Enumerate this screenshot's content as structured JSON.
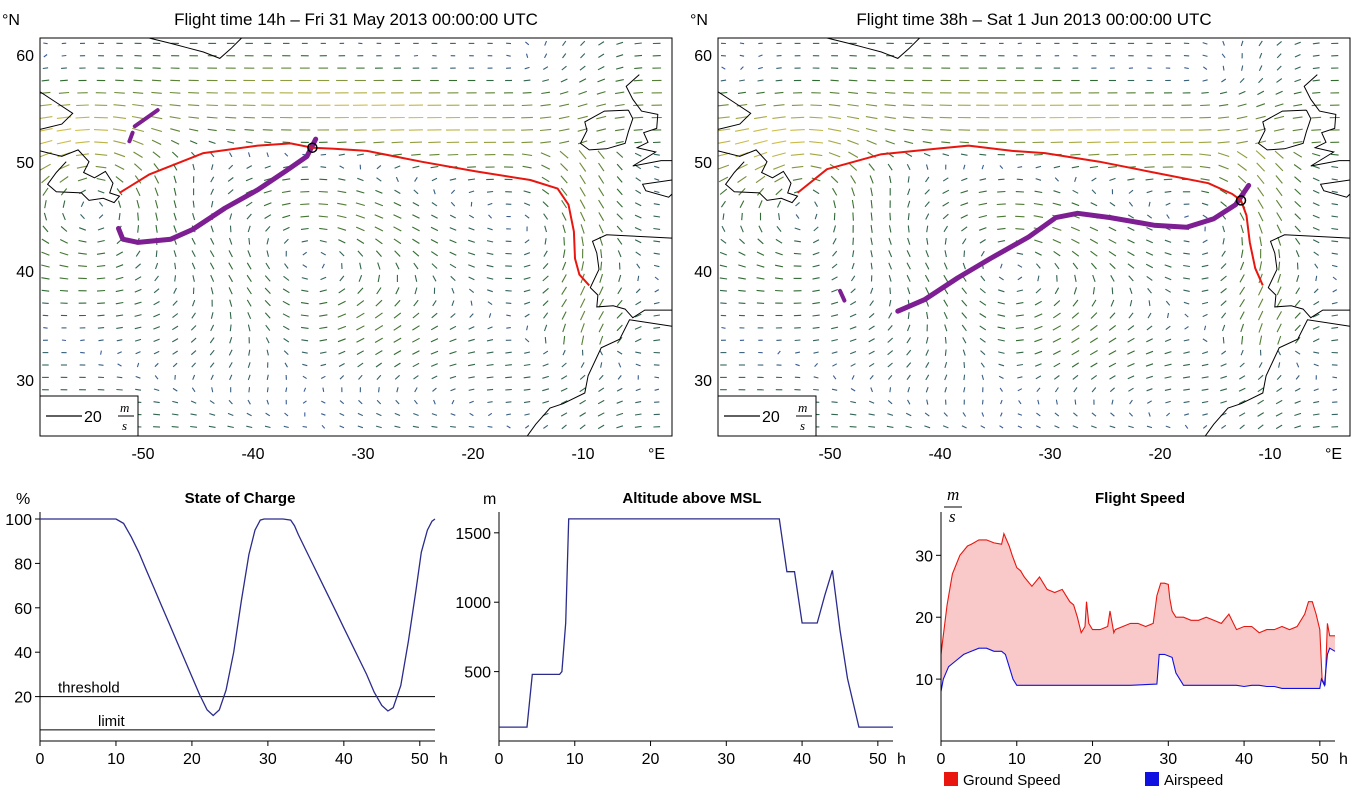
{
  "colors": {
    "trajectory": "#e8160f",
    "region": "#7d1f92",
    "soc_line": "#2b2b8c",
    "ground_speed": "#e8160f",
    "airspeed": "#1010e0",
    "fill": "#f9c9c9",
    "wind_slow": "#3a5aa0",
    "wind_mid": "#2e6b2e",
    "wind_fast": "#d9c24a",
    "coast": "#000000"
  },
  "maps": [
    {
      "title": "Flight time 14h – Fri 31 May 2013 00:00:00 UTC",
      "lat_unit": "°N",
      "lon_unit": "°E",
      "lat_ticks": [
        "60",
        "50",
        "40",
        "30"
      ],
      "lon_ticks": [
        "-50",
        "-40",
        "-30",
        "-20",
        "-10"
      ],
      "scale_label": "20",
      "scale_num": "m",
      "scale_den": "s",
      "trajectory": [
        [
          -52.7,
          47.6
        ],
        [
          -50,
          49.3
        ],
        [
          -45,
          51.3
        ],
        [
          -40,
          52
        ],
        [
          -37,
          52.2
        ],
        [
          -35,
          51.8
        ],
        [
          -33,
          51.7
        ],
        [
          -30,
          51.5
        ],
        [
          -25,
          50.5
        ],
        [
          -20,
          49.6
        ],
        [
          -15,
          48.8
        ],
        [
          -12.5,
          48
        ],
        [
          -11.5,
          46.5
        ],
        [
          -11,
          44
        ],
        [
          -10.9,
          41.5
        ],
        [
          -10.5,
          40
        ],
        [
          -9.6,
          39
        ]
      ],
      "current_position": [
        -35,
        51.8
      ],
      "reach_region": [
        [
          -52.8,
          44.3
        ],
        [
          -52.4,
          43.3
        ],
        [
          -51,
          43
        ],
        [
          -48,
          43.3
        ],
        [
          -46,
          44.2
        ],
        [
          -43,
          46.2
        ],
        [
          -40,
          47.9
        ],
        [
          -37.5,
          49.6
        ],
        [
          -35.5,
          51
        ],
        [
          -34.7,
          52.6
        ]
      ],
      "reach_islands": [
        [
          [
            -51.3,
            53.8
          ],
          [
            -49.2,
            55.3
          ]
        ],
        [
          [
            -51.8,
            52.4
          ],
          [
            -51.5,
            53.2
          ]
        ]
      ]
    },
    {
      "title": "Flight time 38h – Sat 1 Jun 2013 00:00:00 UTC",
      "lat_unit": "°N",
      "lon_unit": "°E",
      "lat_ticks": [
        "60",
        "50",
        "40",
        "30"
      ],
      "lon_ticks": [
        "-50",
        "-40",
        "-30",
        "-20",
        "-10"
      ],
      "scale_label": "20",
      "scale_num": "m",
      "scale_den": "s",
      "trajectory": [
        [
          -52.7,
          47.6
        ],
        [
          -50,
          49.8
        ],
        [
          -45,
          51.2
        ],
        [
          -40,
          51.7
        ],
        [
          -37,
          52
        ],
        [
          -33,
          51.5
        ],
        [
          -30,
          51.3
        ],
        [
          -25,
          50.5
        ],
        [
          -20,
          49.5
        ],
        [
          -15,
          48.5
        ],
        [
          -12.8,
          47.5
        ],
        [
          -12,
          46.9
        ],
        [
          -11.5,
          45.5
        ],
        [
          -11.2,
          43
        ],
        [
          -10.7,
          40.6
        ],
        [
          -10,
          39
        ]
      ],
      "current_position": [
        -12,
        46.9
      ],
      "reach_region": [
        [
          -43.5,
          36.6
        ],
        [
          -41,
          37.7
        ],
        [
          -38,
          39.7
        ],
        [
          -35,
          41.5
        ],
        [
          -31.5,
          43.5
        ],
        [
          -29,
          45.3
        ],
        [
          -27,
          45.7
        ],
        [
          -24,
          45.3
        ],
        [
          -20,
          44.6
        ],
        [
          -17,
          44.4
        ],
        [
          -14.5,
          45.2
        ],
        [
          -12.5,
          46.5
        ],
        [
          -11.3,
          48.3
        ]
      ],
      "reach_islands": [
        [
          [
            -48.8,
            38.5
          ],
          [
            -48.4,
            37.6
          ]
        ]
      ]
    }
  ],
  "chart_data": [
    {
      "type": "line",
      "title": "State of Charge",
      "ylabel": "%",
      "xlabel": "h",
      "xlim": [
        0,
        52
      ],
      "ylim": [
        0,
        100
      ],
      "x_ticks": [
        "0",
        "10",
        "20",
        "30",
        "40",
        "50"
      ],
      "y_ticks": [
        "20",
        "40",
        "60",
        "80",
        "100"
      ],
      "series": [
        {
          "x": [
            0,
            10,
            11,
            12,
            13,
            14,
            15,
            16,
            17,
            18,
            19,
            20,
            21,
            22,
            22.8,
            23.6,
            24.5,
            25.5,
            26.5,
            27.5,
            28.3,
            29,
            29.5,
            30,
            31,
            32,
            33,
            33.5,
            34,
            35,
            36,
            37,
            38,
            39,
            40,
            41,
            42,
            43,
            44,
            45,
            45.8,
            46.5,
            47.5,
            48.5,
            49.5,
            50.2,
            51,
            51.6,
            52
          ],
          "y": [
            100,
            100,
            98,
            92,
            85,
            77,
            69,
            61,
            53,
            45,
            37,
            29,
            21,
            14,
            11.5,
            14,
            23,
            40,
            63,
            84,
            95,
            99.5,
            100,
            100,
            100,
            100,
            99.5,
            97,
            93,
            86,
            79,
            72,
            65,
            58,
            51,
            44,
            37,
            30,
            22,
            16,
            13.5,
            15,
            25,
            45,
            68,
            85,
            95,
            99,
            100
          ]
        }
      ],
      "annotations": [
        {
          "label": "threshold",
          "y": 20
        },
        {
          "label": "limit",
          "y": 5
        }
      ]
    },
    {
      "type": "line",
      "title": "Altitude above MSL",
      "ylabel": "m",
      "xlabel": "h",
      "xlim": [
        0,
        52
      ],
      "ylim": [
        0,
        1650
      ],
      "x_ticks": [
        "0",
        "10",
        "20",
        "30",
        "40",
        "50"
      ],
      "y_ticks": [
        "500",
        "1000",
        "1500"
      ],
      "series": [
        {
          "x": [
            0,
            3.7,
            4.4,
            8,
            8.3,
            8.8,
            9.2,
            37,
            38,
            39,
            40,
            40.5,
            41,
            42,
            43,
            44,
            45,
            46,
            47.5,
            50,
            52
          ],
          "y": [
            100,
            100,
            480,
            480,
            500,
            850,
            1600,
            1600,
            1220,
            1220,
            850,
            850,
            850,
            850,
            1050,
            1230,
            800,
            450,
            100,
            100,
            100
          ]
        }
      ]
    },
    {
      "type": "area",
      "title": "Flight Speed",
      "ylabel_num": "m",
      "ylabel_den": "s",
      "xlabel": "h",
      "xlim": [
        0,
        52
      ],
      "ylim": [
        0,
        37
      ],
      "x_ticks": [
        "0",
        "10",
        "20",
        "30",
        "40",
        "50"
      ],
      "y_ticks": [
        "10",
        "20",
        "30"
      ],
      "series": [
        {
          "name": "Ground Speed",
          "x": [
            0,
            0.2,
            0.8,
            1.5,
            2.5,
            3.5,
            4,
            5,
            6,
            7,
            8,
            8.3,
            9,
            9.4,
            9.7,
            10,
            10.5,
            11,
            12,
            13,
            14,
            15,
            16,
            17,
            17.5,
            18,
            18.5,
            19,
            19.2,
            19.5,
            20,
            21,
            22,
            22.3,
            22.8,
            23,
            24,
            25,
            26,
            27,
            28,
            28.5,
            29,
            29.5,
            30,
            30.2,
            30.5,
            31,
            32,
            33,
            34,
            35,
            36,
            37,
            38,
            39,
            40,
            41,
            42,
            43,
            44,
            45,
            46,
            47,
            48,
            48.5,
            49,
            49.5,
            50,
            50.3,
            50.7,
            51,
            51.3,
            52
          ],
          "y": [
            14,
            16,
            22,
            27,
            30,
            31.5,
            31.8,
            32.5,
            32.5,
            32,
            31.8,
            33.5,
            31.5,
            30,
            29,
            28,
            27.5,
            26.5,
            25,
            26.5,
            24.5,
            24,
            24.5,
            22.5,
            22,
            20,
            17.5,
            18.5,
            22.5,
            19,
            18,
            18,
            18.5,
            21,
            17.5,
            18,
            18.5,
            19,
            19,
            18.5,
            19,
            23.5,
            25.5,
            25.5,
            25.3,
            23,
            21,
            20,
            20,
            19.5,
            19.5,
            20,
            19.5,
            19,
            20.5,
            18,
            18.5,
            18.5,
            17.5,
            18,
            18,
            18.5,
            18,
            18.5,
            20.5,
            22.5,
            22.5,
            20.5,
            18,
            10,
            9,
            19,
            17,
            17
          ]
        },
        {
          "name": "Airspeed",
          "x": [
            0,
            0.3,
            1,
            2,
            3,
            4,
            5,
            6,
            7,
            8,
            8.5,
            9,
            9.5,
            10,
            15,
            20,
            25,
            28.5,
            28.8,
            29.5,
            30.5,
            31,
            32,
            33,
            34,
            35,
            36,
            37,
            38,
            39,
            40,
            41,
            42,
            43,
            44,
            45,
            46,
            47,
            48,
            49,
            50,
            50.2,
            50.6,
            51,
            51.3,
            52
          ],
          "y": [
            8,
            10,
            12,
            13,
            14,
            14.5,
            15,
            15,
            14.5,
            14.5,
            14,
            12,
            10,
            9,
            9,
            9,
            9,
            9.2,
            14,
            14,
            13.5,
            11,
            9,
            9,
            9,
            9,
            9,
            9,
            9,
            9,
            8.8,
            9,
            9,
            8.8,
            8.8,
            8.5,
            8.5,
            8.5,
            8.5,
            8.5,
            8.5,
            10,
            9,
            14,
            15,
            14.5
          ]
        }
      ],
      "legend": [
        {
          "label": "Ground Speed",
          "color": "#e8160f"
        },
        {
          "label": "Airspeed",
          "color": "#1010e0"
        }
      ],
      "legend_position": "bottom"
    }
  ]
}
